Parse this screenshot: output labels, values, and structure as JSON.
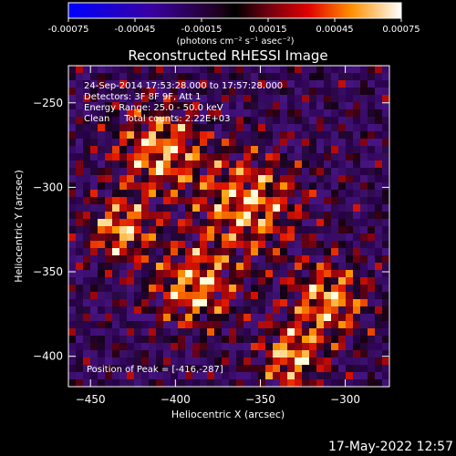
{
  "colorbar": {
    "ticks": [
      "-0.00075",
      "-0.00045",
      "-0.00015",
      "0.00015",
      "0.00045",
      "0.00075"
    ],
    "units": "(photons cm⁻² s⁻¹ asec⁻²)",
    "range": [
      -0.00075,
      0.00075
    ]
  },
  "chart_data": {
    "type": "heatmap",
    "title": "Reconstructed RHESSI Image",
    "xlabel": "Heliocentric X (arcsec)",
    "ylabel": "Heliocentric Y (arcsec)",
    "xlim": [
      -463,
      -274
    ],
    "ylim": [
      -418,
      -228
    ],
    "xticks": [
      -450,
      -400,
      -350,
      -300
    ],
    "yticks": [
      -250,
      -300,
      -350,
      -400
    ],
    "annotations": [
      "24-Sep-2014 17:53:28.000 to 17:57:28.000",
      "Detectors: 3F 8F 9F, Att 1",
      "Energy Range: 25.0 - 50.0 keV",
      "Clean     Total counts: 2.22E+03"
    ],
    "peak_label": "Position of Peak = [-416,-287]",
    "peak": [
      -416,
      -287
    ],
    "grid": false
  },
  "footer": {
    "timestamp": "17-May-2022 12:57"
  }
}
